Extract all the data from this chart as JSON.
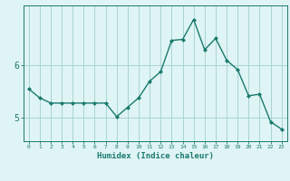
{
  "xlabel": "Humidex (Indice chaleur)",
  "ylabel": "",
  "x": [
    0,
    1,
    2,
    3,
    4,
    5,
    6,
    7,
    8,
    9,
    10,
    11,
    12,
    13,
    14,
    15,
    16,
    17,
    18,
    19,
    20,
    21,
    22,
    23
  ],
  "y": [
    5.55,
    5.38,
    5.28,
    5.28,
    5.28,
    5.28,
    5.28,
    5.28,
    5.02,
    5.2,
    5.38,
    5.7,
    5.88,
    6.48,
    6.5,
    6.88,
    6.3,
    6.52,
    6.1,
    5.92,
    5.42,
    5.45,
    4.92,
    4.78
  ],
  "line_color": "#1a7a6e",
  "marker": "D",
  "marker_size": 2,
  "line_width": 1.0,
  "background_color": "#dff4f4",
  "grid_color": "#aad4d4",
  "tick_color": "#1a7a6e",
  "label_color": "#1a7a6e",
  "xlim": [
    -0.5,
    23.5
  ],
  "ylim_min": 4.55,
  "ylim_max": 7.15,
  "yticks": [
    5,
    6
  ],
  "xtick_labels": [
    "0",
    "1",
    "2",
    "3",
    "4",
    "5",
    "6",
    "7",
    "8",
    "9",
    "10",
    "11",
    "12",
    "13",
    "14",
    "15",
    "16",
    "17",
    "18",
    "19",
    "20",
    "21",
    "22",
    "23"
  ]
}
